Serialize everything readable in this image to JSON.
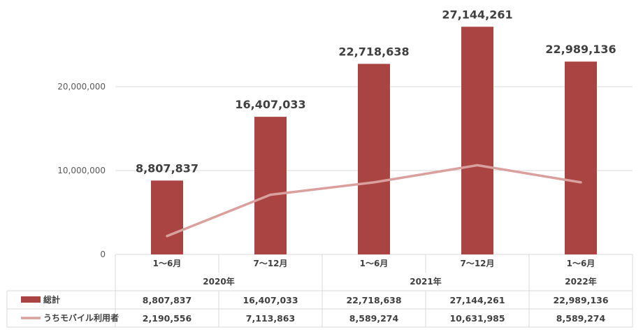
{
  "chart_data": {
    "type": "bar",
    "categories": [
      "1～6月",
      "7～12月",
      "1～6月",
      "7～12月",
      "1～6月"
    ],
    "groups": [
      {
        "label": "2020年",
        "span": 2
      },
      {
        "label": "2021年",
        "span": 2
      },
      {
        "label": "2022年",
        "span": 1
      }
    ],
    "series": [
      {
        "name": "総計",
        "type": "bar",
        "color": "#a94442",
        "values": [
          8807837,
          16407033,
          22718638,
          27144261,
          22989136
        ],
        "labels": [
          "8,807,837",
          "16,407,033",
          "22,718,638",
          "27,144,261",
          "22,989,136"
        ]
      },
      {
        "name": "うちモバイル利用者",
        "type": "line",
        "color": "#d9a09e",
        "values": [
          2190556,
          7113863,
          8589274,
          10631985,
          8589274
        ],
        "labels": [
          "2,190,556",
          "7,113,863",
          "8,589,274",
          "10,631,985",
          "8,589,274"
        ]
      }
    ],
    "yticks": [
      "0",
      "10,000,000",
      "20,000,000"
    ],
    "ylim": [
      0,
      30000000
    ],
    "grid": true,
    "legend": "data-table"
  }
}
